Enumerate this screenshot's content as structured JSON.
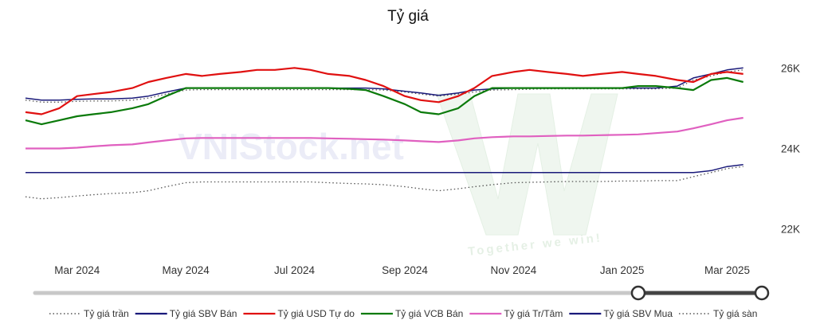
{
  "chart_data": {
    "type": "line",
    "title": "Tỷ giá",
    "xlabel": "",
    "ylabel": "",
    "x_ticks": [
      "Mar 2024",
      "May 2024",
      "Jul 2024",
      "Sep 2024",
      "Nov 2024",
      "Jan 2025",
      "Mar 2025"
    ],
    "y_ticks": [
      "22K",
      "24K",
      "26K"
    ],
    "ylim": [
      21400,
      26500
    ],
    "xlim": [
      "2024-02-01",
      "2025-03-20"
    ],
    "grid": false,
    "legend_position": "bottom",
    "x": [
      "2024-02-01",
      "2024-02-10",
      "2024-02-20",
      "2024-03-01",
      "2024-03-10",
      "2024-03-20",
      "2024-04-01",
      "2024-04-10",
      "2024-04-20",
      "2024-05-01",
      "2024-05-10",
      "2024-05-20",
      "2024-06-01",
      "2024-06-10",
      "2024-06-20",
      "2024-07-01",
      "2024-07-10",
      "2024-07-20",
      "2024-08-01",
      "2024-08-10",
      "2024-08-20",
      "2024-09-01",
      "2024-09-10",
      "2024-09-20",
      "2024-10-01",
      "2024-10-10",
      "2024-10-20",
      "2024-11-01",
      "2024-11-10",
      "2024-11-20",
      "2024-12-01",
      "2024-12-10",
      "2024-12-20",
      "2025-01-01",
      "2025-01-10",
      "2025-01-20",
      "2025-02-01",
      "2025-02-10",
      "2025-02-20",
      "2025-03-01",
      "2025-03-10"
    ],
    "series": [
      {
        "name": "Tỷ giá trần",
        "color": "#555555",
        "dash": "dotted",
        "values": [
          25200,
          25150,
          25150,
          25170,
          25180,
          25180,
          25200,
          25250,
          25350,
          25450,
          25460,
          25460,
          25460,
          25460,
          25460,
          25460,
          25460,
          25460,
          25460,
          25460,
          25450,
          25400,
          25350,
          25300,
          25350,
          25400,
          25450,
          25460,
          25470,
          25480,
          25480,
          25480,
          25480,
          25480,
          25480,
          25480,
          25500,
          25700,
          25800,
          25900,
          25950
        ]
      },
      {
        "name": "Tỷ giá SBV Bán",
        "color": "#1a1a7a",
        "dash": "solid",
        "values": [
          25250,
          25200,
          25200,
          25220,
          25230,
          25230,
          25250,
          25300,
          25400,
          25500,
          25500,
          25500,
          25500,
          25500,
          25500,
          25500,
          25500,
          25500,
          25500,
          25500,
          25480,
          25420,
          25380,
          25320,
          25380,
          25450,
          25480,
          25500,
          25500,
          25500,
          25500,
          25500,
          25500,
          25500,
          25500,
          25500,
          25550,
          25750,
          25850,
          25950,
          26000
        ]
      },
      {
        "name": "Tỷ giá USD Tự do",
        "color": "#e01010",
        "dash": "solid",
        "values": [
          24900,
          24850,
          25000,
          25300,
          25350,
          25400,
          25500,
          25650,
          25750,
          25850,
          25800,
          25850,
          25900,
          25950,
          25950,
          26000,
          25950,
          25850,
          25800,
          25700,
          25550,
          25300,
          25200,
          25150,
          25300,
          25500,
          25800,
          25900,
          25950,
          25900,
          25850,
          25800,
          25850,
          25900,
          25850,
          25800,
          25700,
          25650,
          25850,
          25900,
          25850
        ]
      },
      {
        "name": "Tỷ giá VCB Bán",
        "color": "#0a7a0a",
        "dash": "solid",
        "values": [
          24700,
          24600,
          24700,
          24800,
          24850,
          24900,
          25000,
          25100,
          25300,
          25500,
          25500,
          25500,
          25500,
          25500,
          25500,
          25500,
          25500,
          25500,
          25480,
          25450,
          25300,
          25100,
          24900,
          24850,
          25000,
          25300,
          25500,
          25500,
          25500,
          25500,
          25500,
          25500,
          25500,
          25500,
          25550,
          25550,
          25500,
          25450,
          25700,
          25750,
          25650
        ]
      },
      {
        "name": "Tỷ giá Tr/Tâm",
        "color": "#e060c0",
        "dash": "solid",
        "values": [
          24000,
          24000,
          24000,
          24020,
          24050,
          24080,
          24100,
          24150,
          24200,
          24250,
          24260,
          24260,
          24260,
          24260,
          24260,
          24260,
          24260,
          24250,
          24240,
          24230,
          24220,
          24200,
          24180,
          24160,
          24200,
          24250,
          24280,
          24300,
          24300,
          24310,
          24320,
          24320,
          24330,
          24340,
          24350,
          24380,
          24420,
          24500,
          24600,
          24700,
          24760
        ]
      },
      {
        "name": "Tỷ giá SBV Mua",
        "color": "#1a1a7a",
        "dash": "solid",
        "values": [
          23400,
          23400,
          23400,
          23400,
          23400,
          23400,
          23400,
          23400,
          23400,
          23400,
          23400,
          23400,
          23400,
          23400,
          23400,
          23400,
          23400,
          23400,
          23400,
          23400,
          23400,
          23400,
          23400,
          23400,
          23400,
          23400,
          23400,
          23400,
          23400,
          23400,
          23400,
          23400,
          23400,
          23400,
          23400,
          23400,
          23400,
          23400,
          23450,
          23550,
          23600
        ]
      },
      {
        "name": "Tỷ giá sàn",
        "color": "#555555",
        "dash": "dotted",
        "values": [
          22800,
          22750,
          22780,
          22820,
          22850,
          22880,
          22900,
          22950,
          23050,
          23150,
          23170,
          23170,
          23170,
          23170,
          23170,
          23170,
          23170,
          23150,
          23130,
          23120,
          23100,
          23050,
          23000,
          22950,
          23000,
          23050,
          23100,
          23150,
          23160,
          23170,
          23180,
          23180,
          23180,
          23190,
          23190,
          23200,
          23200,
          23300,
          23400,
          23500,
          23550
        ]
      }
    ]
  },
  "watermark": {
    "text": "VNIStock.net",
    "slogan": "Together we win!"
  },
  "slider": {
    "range_start_fraction": 0.83,
    "range_end_fraction": 1.0
  }
}
